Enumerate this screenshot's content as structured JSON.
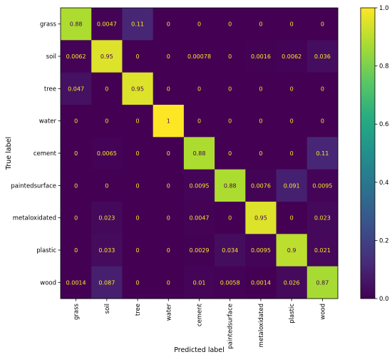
{
  "chart_data": {
    "type": "heatmap",
    "title": "",
    "xlabel": "Predicted label",
    "ylabel": "True label",
    "x_categories": [
      "grass",
      "soil",
      "tree",
      "water",
      "cement",
      "paintedsurface",
      "metaloxidated",
      "plastic",
      "wood"
    ],
    "y_categories": [
      "grass",
      "soil",
      "tree",
      "water",
      "cement",
      "paintedsurface",
      "metaloxidated",
      "plastic",
      "wood"
    ],
    "values": [
      [
        0.88,
        0.0047,
        0.11,
        0,
        0,
        0,
        0,
        0,
        0
      ],
      [
        0.0062,
        0.95,
        0,
        0,
        0.00078,
        0,
        0.0016,
        0.0062,
        0.036
      ],
      [
        0.047,
        0,
        0.95,
        0,
        0,
        0,
        0,
        0,
        0
      ],
      [
        0,
        0,
        0,
        1,
        0,
        0,
        0,
        0,
        0
      ],
      [
        0,
        0.0065,
        0,
        0,
        0.88,
        0,
        0,
        0,
        0.11
      ],
      [
        0,
        0,
        0,
        0,
        0.0095,
        0.88,
        0.0076,
        0.091,
        0.0095
      ],
      [
        0,
        0.023,
        0,
        0,
        0.0047,
        0,
        0.95,
        0,
        0.023
      ],
      [
        0,
        0.033,
        0,
        0,
        0.0029,
        0.034,
        0.0095,
        0.9,
        0.021
      ],
      [
        0.0014,
        0.087,
        0,
        0,
        0.01,
        0.0058,
        0.0014,
        0.026,
        0.87
      ]
    ],
    "labels": [
      [
        "0.88",
        "0.0047",
        "0.11",
        "0",
        "0",
        "0",
        "0",
        "0",
        "0"
      ],
      [
        "0.0062",
        "0.95",
        "0",
        "0",
        "0.00078",
        "0",
        "0.0016",
        "0.0062",
        "0.036"
      ],
      [
        "0.047",
        "0",
        "0.95",
        "0",
        "0",
        "0",
        "0",
        "0",
        "0"
      ],
      [
        "0",
        "0",
        "0",
        "1",
        "0",
        "0",
        "0",
        "0",
        "0"
      ],
      [
        "0",
        "0.0065",
        "0",
        "0",
        "0.88",
        "0",
        "0",
        "0",
        "0.11"
      ],
      [
        "0",
        "0",
        "0",
        "0",
        "0.0095",
        "0.88",
        "0.0076",
        "0.091",
        "0.0095"
      ],
      [
        "0",
        "0.023",
        "0",
        "0",
        "0.0047",
        "0",
        "0.95",
        "0",
        "0.023"
      ],
      [
        "0",
        "0.033",
        "0",
        "0",
        "0.0029",
        "0.034",
        "0.0095",
        "0.9",
        "0.021"
      ],
      [
        "0.0014",
        "0.087",
        "0",
        "0",
        "0.01",
        "0.0058",
        "0.0014",
        "0.026",
        "0.87"
      ]
    ],
    "colormap": "viridis",
    "value_range": [
      0,
      1
    ],
    "colorbar_ticks": [
      0.0,
      0.2,
      0.4,
      0.6,
      0.8,
      1.0
    ],
    "colorbar_tick_labels": [
      "0.0",
      "0.2",
      "0.4",
      "0.6",
      "0.8",
      "1.0"
    ],
    "annotation_colors": {
      "on_dark": "#fde725",
      "on_light": "#440154"
    },
    "grid": false
  }
}
